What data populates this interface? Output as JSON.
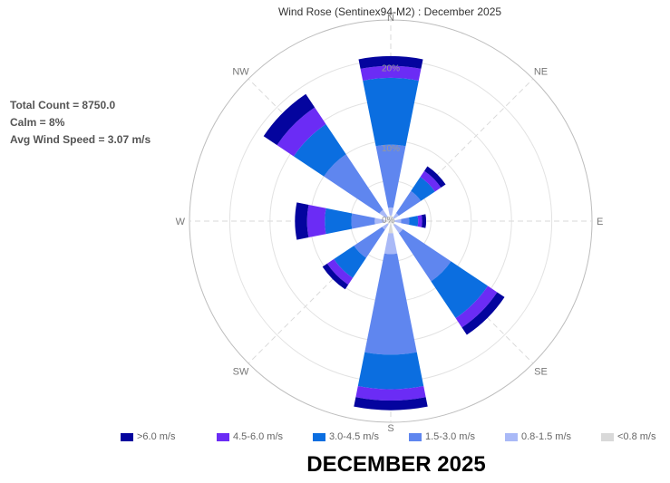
{
  "title": "Wind Rose (Sentinex94-M2) : December 2025",
  "stats": {
    "total_count": "Total Count = 8750.0",
    "calm": "Calm = 8%",
    "avg_speed": "Avg Wind Speed = 3.07 m/s"
  },
  "footer_title": "DECEMBER 2025",
  "chart_data": {
    "type": "windrose",
    "title": "Wind Rose (Sentinex94-M2) : December 2025",
    "directions": [
      "N",
      "NE",
      "E",
      "SE",
      "S",
      "SW",
      "W",
      "NW"
    ],
    "direction_angles_deg": [
      0,
      45,
      90,
      135,
      180,
      225,
      270,
      315
    ],
    "radial_ticks": [
      "0%",
      "10%",
      "20%"
    ],
    "radial_max": 25,
    "series": [
      {
        "name": "<0.8 m/s",
        "color": "#d9d9d9",
        "values": [
          0.7,
          0.5,
          0.5,
          0.6,
          1.5,
          0.5,
          0.8,
          0.7
        ]
      },
      {
        "name": "0.8-1.5 m/s",
        "color": "#a9b9f7",
        "values": [
          1.0,
          0.7,
          0.8,
          1.2,
          2.6,
          0.8,
          1.2,
          1.0
        ]
      },
      {
        "name": "1.5-3.0 m/s",
        "color": "#5f86ef",
        "values": [
          7.8,
          3.3,
          1.0,
          7.2,
          12.5,
          4.2,
          2.9,
          8.3
        ]
      },
      {
        "name": "3.0-4.5 m/s",
        "color": "#0b6ee0",
        "values": [
          8.3,
          2.1,
          1.1,
          5.5,
          4.3,
          3.0,
          3.3,
          4.5
        ]
      },
      {
        "name": "4.5-6.0 m/s",
        "color": "#6b2cf5",
        "values": [
          1.5,
          0.9,
          0.5,
          1.4,
          1.4,
          1.0,
          2.2,
          2.5
        ]
      },
      {
        "name": ">6.0 m/s",
        "color": "#04049e",
        "values": [
          1.2,
          0.7,
          0.5,
          1.1,
          1.2,
          0.7,
          1.5,
          2.0
        ]
      }
    ],
    "legend_order": [
      ">6.0 m/s",
      "4.5-6.0 m/s",
      "3.0-4.5 m/s",
      "1.5-3.0 m/s",
      "0.8-1.5 m/s",
      "<0.8 m/s"
    ],
    "legend_placement": "bottom"
  }
}
